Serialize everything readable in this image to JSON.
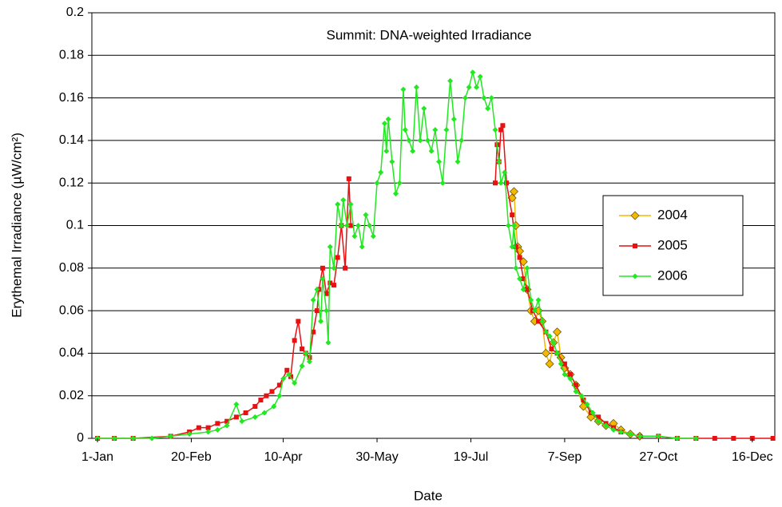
{
  "chart_data": {
    "type": "line",
    "title": "Summit: DNA-weighted Irradiance",
    "xlabel": "Date",
    "ylabel": "Erythemal Irradiance (µW/cm²)",
    "xlim": [
      -2,
      362
    ],
    "ylim": [
      0,
      0.2
    ],
    "xticks": [
      {
        "value": 1,
        "label": "1-Jan"
      },
      {
        "value": 51,
        "label": "20-Feb"
      },
      {
        "value": 100,
        "label": "10-Apr"
      },
      {
        "value": 150,
        "label": "30-May"
      },
      {
        "value": 200,
        "label": "19-Jul"
      },
      {
        "value": 250,
        "label": "7-Sep"
      },
      {
        "value": 300,
        "label": "27-Oct"
      },
      {
        "value": 350,
        "label": "16-Dec"
      }
    ],
    "yticks": [
      0,
      0.02,
      0.04,
      0.06,
      0.08,
      0.1,
      0.12,
      0.14,
      0.16,
      0.18,
      0.2
    ],
    "grid": true,
    "legend": "right",
    "series": [
      {
        "name": "2004",
        "color": "#f5b800",
        "marker": "diamond",
        "x": [
          222,
          223,
          224,
          225,
          226,
          228,
          230,
          232,
          234,
          236,
          238,
          240,
          242,
          244,
          246,
          248,
          250,
          253,
          256,
          260,
          264,
          268,
          272,
          276,
          280,
          285,
          290
        ],
        "values": [
          0.113,
          0.116,
          0.1,
          0.09,
          0.088,
          0.083,
          0.07,
          0.06,
          0.055,
          0.06,
          0.055,
          0.04,
          0.035,
          0.045,
          0.05,
          0.038,
          0.033,
          0.03,
          0.025,
          0.015,
          0.01,
          0.008,
          0.006,
          0.007,
          0.004,
          0.002,
          0.001
        ]
      },
      {
        "name": "2005",
        "color": "#e81010",
        "marker": "square",
        "x": [
          1,
          10,
          20,
          40,
          50,
          55,
          60,
          65,
          70,
          75,
          80,
          85,
          88,
          91,
          94,
          98,
          102,
          104,
          106,
          108,
          110,
          112,
          114,
          116,
          118,
          119,
          121,
          123,
          125,
          127,
          129,
          131,
          133,
          135,
          136,
          170,
          213,
          214,
          215,
          216,
          217,
          219,
          222,
          224,
          226,
          228,
          230,
          233,
          236,
          240,
          243,
          246,
          250,
          253,
          256,
          260,
          264,
          268,
          272,
          276,
          280,
          290,
          300,
          310,
          320,
          330,
          340,
          350,
          361
        ],
        "values": [
          0,
          0,
          0,
          0.001,
          0.003,
          0.005,
          0.005,
          0.007,
          0.008,
          0.01,
          0.012,
          0.015,
          0.018,
          0.02,
          0.022,
          0.025,
          0.032,
          0.029,
          0.046,
          0.055,
          0.042,
          0.04,
          0.038,
          0.05,
          0.06,
          0.07,
          0.08,
          0.068,
          0.073,
          0.072,
          0.085,
          0.1,
          0.08,
          0.122,
          0.1,
          null,
          0.12,
          0.138,
          0.13,
          0.145,
          0.147,
          0.12,
          0.105,
          0.09,
          0.085,
          0.075,
          0.07,
          0.06,
          0.055,
          0.05,
          0.042,
          0.04,
          0.035,
          0.03,
          0.025,
          0.018,
          0.012,
          0.01,
          0.007,
          0.005,
          0.003,
          0.001,
          0.001,
          0,
          0,
          0,
          0,
          0,
          0
        ]
      },
      {
        "name": "2006",
        "color": "#22e822",
        "marker": "diamond-small",
        "x": [
          1,
          10,
          20,
          30,
          40,
          50,
          60,
          65,
          70,
          75,
          78,
          85,
          90,
          95,
          98,
          100,
          103,
          106,
          110,
          112,
          114,
          116,
          118,
          120,
          121,
          123,
          124,
          125,
          127,
          129,
          131,
          132,
          134,
          136,
          138,
          140,
          142,
          144,
          146,
          148,
          150,
          152,
          154,
          155,
          156,
          158,
          160,
          162,
          164,
          165,
          167,
          169,
          171,
          173,
          175,
          177,
          179,
          181,
          183,
          185,
          187,
          189,
          191,
          193,
          195,
          197,
          199,
          201,
          203,
          205,
          207,
          209,
          211,
          213,
          215,
          216,
          218,
          220,
          222,
          223,
          224,
          226,
          228,
          230,
          232,
          234,
          236,
          238,
          240,
          242,
          244,
          246,
          248,
          250,
          253,
          256,
          259,
          262,
          265,
          268,
          272,
          276,
          280,
          285,
          290,
          300,
          310,
          320
        ],
        "values": [
          0,
          0,
          0,
          0,
          0.001,
          0.002,
          0.003,
          0.004,
          0.006,
          0.016,
          0.008,
          0.01,
          0.012,
          0.015,
          0.02,
          0.028,
          0.03,
          0.026,
          0.034,
          0.04,
          0.036,
          0.065,
          0.07,
          0.055,
          0.075,
          0.06,
          0.045,
          0.09,
          0.08,
          0.11,
          0.1,
          0.112,
          0.1,
          0.11,
          0.095,
          0.1,
          0.09,
          0.105,
          0.1,
          0.095,
          0.12,
          0.125,
          0.148,
          0.135,
          0.15,
          0.13,
          0.115,
          0.12,
          0.164,
          0.145,
          0.14,
          0.135,
          0.165,
          0.14,
          0.155,
          0.14,
          0.135,
          0.145,
          0.13,
          0.12,
          0.145,
          0.168,
          0.15,
          0.13,
          0.14,
          0.16,
          0.165,
          0.172,
          0.165,
          0.17,
          0.16,
          0.155,
          0.16,
          0.145,
          0.13,
          0.12,
          0.125,
          0.1,
          0.09,
          0.1,
          0.08,
          0.075,
          0.07,
          0.08,
          0.065,
          0.06,
          0.065,
          0.055,
          0.05,
          0.048,
          0.045,
          0.04,
          0.035,
          0.03,
          0.028,
          0.022,
          0.02,
          0.016,
          0.012,
          0.008,
          0.006,
          0.004,
          0.003,
          0.002,
          0.001,
          0.001,
          0,
          0
        ]
      }
    ]
  }
}
